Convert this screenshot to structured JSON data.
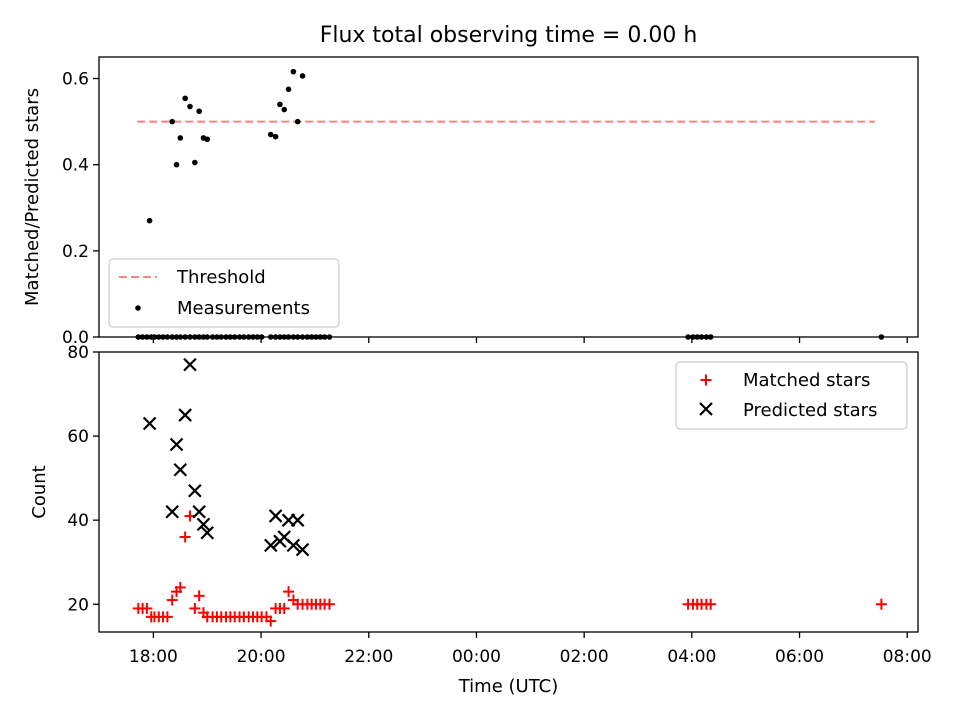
{
  "title": "Flux total observing time = 0.00 h",
  "chart_data": [
    {
      "type": "scatter",
      "ylabel": "Matched/Predicted stars",
      "xlabel": "",
      "xlim": [
        16.99,
        32.2
      ],
      "ylim": [
        0.0,
        0.65
      ],
      "yticks": [
        0.0,
        0.2,
        0.4,
        0.6
      ],
      "ytick_labels": [
        "0.0",
        "0.2",
        "0.4",
        "0.6"
      ],
      "legend": {
        "position": "lower-left",
        "entries": [
          "Threshold",
          "Measurements"
        ]
      },
      "threshold": {
        "name": "Threshold",
        "y": 0.5,
        "x_range": [
          17.7,
          31.4
        ],
        "color": "#ff8080",
        "style": "dashed"
      },
      "series": [
        {
          "name": "Measurements",
          "color": "#000000",
          "x": [
            17.72,
            17.8,
            17.88,
            17.96,
            18.02,
            18.1,
            18.18,
            18.26,
            18.35,
            18.43,
            18.5,
            18.59,
            18.68,
            18.77,
            18.85,
            18.93,
            19.0,
            19.1,
            19.18,
            19.26,
            19.35,
            19.43,
            19.51,
            19.6,
            19.68,
            19.77,
            19.85,
            19.93,
            20.01,
            20.18,
            20.27,
            20.35,
            20.43,
            20.51,
            20.6,
            20.68,
            20.77,
            20.86,
            20.94,
            21.02,
            21.1,
            21.18,
            21.27,
            17.93,
            18.35,
            18.43,
            18.5,
            18.59,
            18.68,
            18.77,
            18.85,
            18.93,
            19.0,
            20.18,
            20.27,
            20.35,
            20.43,
            20.51,
            20.6,
            20.68,
            20.77,
            27.93,
            28.02,
            28.1,
            28.18,
            28.27,
            28.35,
            31.52
          ],
          "y": [
            0,
            0,
            0,
            0,
            0,
            0,
            0,
            0,
            0,
            0,
            0,
            0,
            0,
            0,
            0,
            0,
            0,
            0,
            0,
            0,
            0,
            0,
            0,
            0,
            0,
            0,
            0,
            0,
            0,
            0,
            0,
            0,
            0,
            0,
            0,
            0,
            0,
            0,
            0,
            0,
            0,
            0,
            0,
            0.27,
            0.5,
            0.4,
            0.462,
            0.554,
            0.535,
            0.405,
            0.524,
            0.462,
            0.459,
            0.47,
            0.465,
            0.54,
            0.528,
            0.575,
            0.616,
            0.5,
            0.606,
            0,
            0,
            0,
            0,
            0,
            0,
            0
          ]
        }
      ]
    },
    {
      "type": "scatter",
      "ylabel": "Count",
      "xlabel": "Time (UTC)",
      "xlim": [
        16.99,
        32.2
      ],
      "ylim": [
        13.4,
        80
      ],
      "yticks": [
        20,
        40,
        60,
        80
      ],
      "ytick_labels": [
        "20",
        "40",
        "60",
        "80"
      ],
      "xticks": [
        18,
        20,
        22,
        24,
        26,
        28,
        30,
        32
      ],
      "xtick_labels": [
        "18:00",
        "20:00",
        "22:00",
        "00:00",
        "02:00",
        "04:00",
        "06:00",
        "08:00"
      ],
      "legend": {
        "position": "upper-right",
        "entries": [
          "Matched stars",
          "Predicted stars"
        ]
      },
      "series": [
        {
          "name": "Matched stars",
          "color": "#ff0000",
          "marker": "+",
          "x": [
            17.72,
            17.8,
            17.88,
            17.96,
            18.02,
            18.1,
            18.18,
            18.26,
            18.35,
            18.43,
            18.5,
            18.59,
            18.68,
            18.77,
            18.85,
            18.93,
            19.0,
            19.1,
            19.18,
            19.26,
            19.35,
            19.43,
            19.51,
            19.6,
            19.68,
            19.77,
            19.85,
            19.93,
            20.01,
            20.1,
            20.18,
            20.27,
            20.35,
            20.43,
            20.51,
            20.6,
            20.68,
            20.77,
            20.86,
            20.94,
            21.02,
            21.1,
            21.18,
            21.27,
            27.93,
            28.02,
            28.1,
            28.18,
            28.27,
            28.35,
            31.52
          ],
          "y": [
            19,
            19,
            19,
            17,
            17,
            17,
            17,
            17,
            21,
            23,
            24,
            36,
            41,
            19,
            22,
            18,
            17,
            17,
            17,
            17,
            17,
            17,
            17,
            17,
            17,
            17,
            17,
            17,
            17,
            17,
            16,
            19,
            19,
            19,
            23,
            21,
            20,
            20,
            20,
            20,
            20,
            20,
            20,
            20,
            20,
            20,
            20,
            20,
            20,
            20,
            20
          ]
        },
        {
          "name": "Predicted stars",
          "color": "#000000",
          "marker": "x",
          "x": [
            17.93,
            18.35,
            18.43,
            18.5,
            18.59,
            18.68,
            18.77,
            18.85,
            18.93,
            19.0,
            20.18,
            20.27,
            20.35,
            20.43,
            20.51,
            20.6,
            20.68,
            20.77
          ],
          "y": [
            63,
            42,
            58,
            52,
            65,
            77,
            47,
            42,
            39,
            37,
            34,
            41,
            35,
            36,
            40,
            34,
            40,
            33
          ]
        }
      ]
    }
  ]
}
